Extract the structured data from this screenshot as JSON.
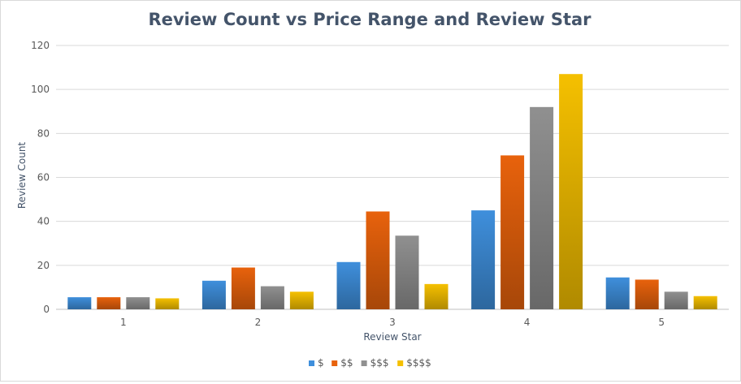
{
  "chart_data": {
    "type": "bar",
    "title": "Review Count vs Price Range and Review Star",
    "xlabel": "Review Star",
    "ylabel": "Review Count",
    "categories": [
      "1",
      "2",
      "3",
      "4",
      "5"
    ],
    "ylim": [
      0,
      120
    ],
    "yticks": [
      0,
      20,
      40,
      60,
      80,
      100,
      120
    ],
    "grid": true,
    "legend_position": "bottom",
    "series": [
      {
        "name": "$",
        "color": "#3f8fdc",
        "values": [
          5.5,
          13,
          21.5,
          45,
          14.5
        ]
      },
      {
        "name": "$$",
        "color": "#e8620c",
        "values": [
          5.5,
          19,
          44.5,
          70,
          13.5
        ]
      },
      {
        "name": "$$$",
        "color": "#909090",
        "values": [
          5.5,
          10.5,
          33.5,
          92,
          8
        ]
      },
      {
        "name": "$$$$",
        "color": "#f5c000",
        "values": [
          5,
          8,
          11.5,
          107,
          6
        ]
      }
    ]
  }
}
